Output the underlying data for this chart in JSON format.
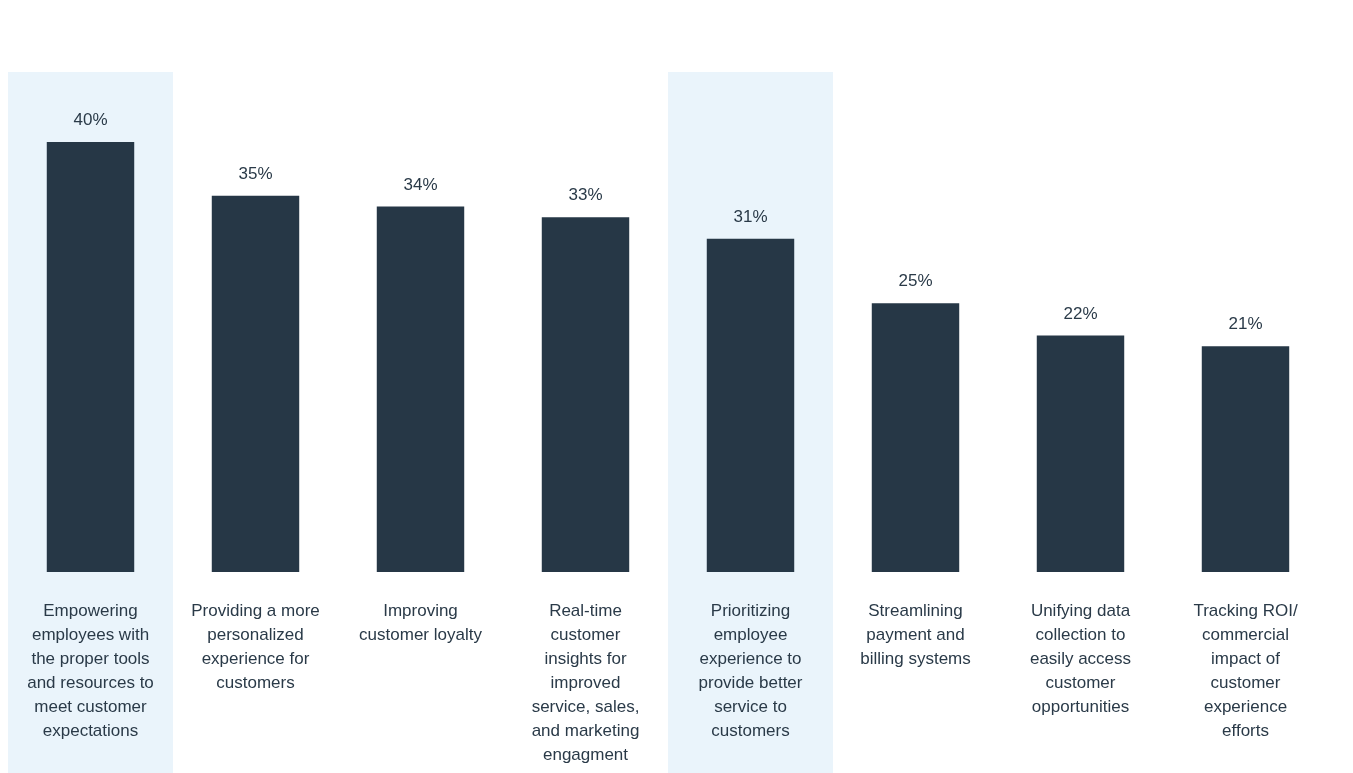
{
  "chart_data": {
    "type": "bar",
    "categories": [
      "Empowering employees with the proper tools and resources to meet customer expectations",
      "Providing a more personalized experience for customers",
      "Improving customer loyalty",
      "Real-time customer insights for improved service, sales, and marketing engagment",
      "Prioritizing employee experience to provide better service to customers",
      "Streamlining payment and billing systems",
      "Unifying data collection to easily access customer opportunities",
      "Tracking ROI/ commercial impact of customer experience efforts"
    ],
    "values": [
      40,
      35,
      34,
      33,
      31,
      25,
      22,
      21
    ],
    "value_labels": [
      "40%",
      "35%",
      "34%",
      "33%",
      "31%",
      "25%",
      "22%",
      "21%"
    ],
    "color": "#263746",
    "bands": [
      {
        "axis": "x",
        "from": "Empowering employees with the proper tools and resources to meet customer expectations",
        "to": "Empowering employees with the proper tools and resources to meet customer expectations",
        "color": "#eaf4fb"
      },
      {
        "axis": "x",
        "from": "Prioritizing employee experience to provide better service to customers",
        "to": "Prioritizing employee experience to provide better service to customers",
        "color": "#eaf4fb"
      }
    ]
  }
}
